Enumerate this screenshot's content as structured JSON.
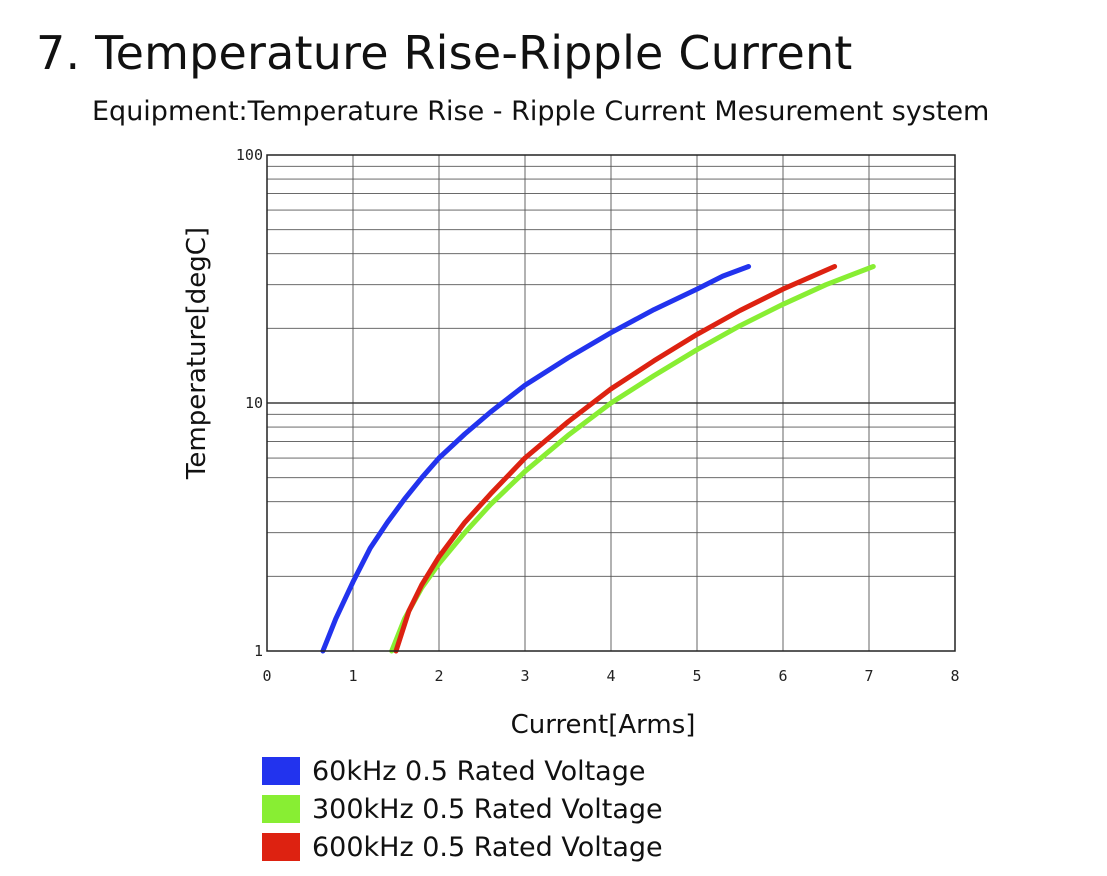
{
  "page": {
    "title": "7. Temperature Rise-Ripple Current",
    "subtitle": "Equipment:Temperature Rise - Ripple Current Mesurement system"
  },
  "chart_data": {
    "type": "line",
    "xlabel": "Current[Arms]",
    "ylabel": "Temperature[degC]",
    "xlim": [
      0,
      8
    ],
    "ylim": [
      1,
      100
    ],
    "yscale": "log",
    "x_ticks": [
      "0",
      "1",
      "2",
      "3",
      "4",
      "5",
      "6",
      "7",
      "8"
    ],
    "y_ticks": [
      "1",
      "10",
      "100"
    ],
    "grid": true,
    "legend_position": "bottom",
    "series": [
      {
        "name": "60kHz 0.5 Rated Voltage",
        "color": "#2233ee",
        "x": [
          0.65,
          0.8,
          1.0,
          1.2,
          1.4,
          1.6,
          1.8,
          2.0,
          2.3,
          2.6,
          3.0,
          3.5,
          4.0,
          4.5,
          5.0,
          5.3,
          5.6
        ],
        "y": [
          1.0,
          1.35,
          1.9,
          2.6,
          3.3,
          4.1,
          5.0,
          6.0,
          7.5,
          9.2,
          11.8,
          15.2,
          19.2,
          23.8,
          28.8,
          32.5,
          35.5
        ]
      },
      {
        "name": "300kHz 0.5 Rated Voltage",
        "color": "#88ee33",
        "x": [
          1.45,
          1.6,
          1.8,
          2.0,
          2.3,
          2.6,
          3.0,
          3.5,
          4.0,
          4.5,
          5.0,
          5.5,
          6.0,
          6.5,
          7.05
        ],
        "y": [
          1.0,
          1.35,
          1.8,
          2.25,
          3.0,
          3.9,
          5.3,
          7.4,
          10.0,
          12.9,
          16.4,
          20.5,
          25.0,
          30.0,
          35.5
        ]
      },
      {
        "name": "600kHz 0.5 Rated Voltage",
        "color": "#dd2211",
        "x": [
          1.5,
          1.65,
          1.8,
          2.0,
          2.3,
          2.6,
          3.0,
          3.5,
          4.0,
          4.5,
          5.0,
          5.5,
          6.0,
          6.6
        ],
        "y": [
          1.0,
          1.45,
          1.85,
          2.4,
          3.3,
          4.3,
          6.0,
          8.4,
          11.4,
          14.8,
          18.9,
          23.6,
          28.8,
          35.5
        ]
      }
    ]
  }
}
